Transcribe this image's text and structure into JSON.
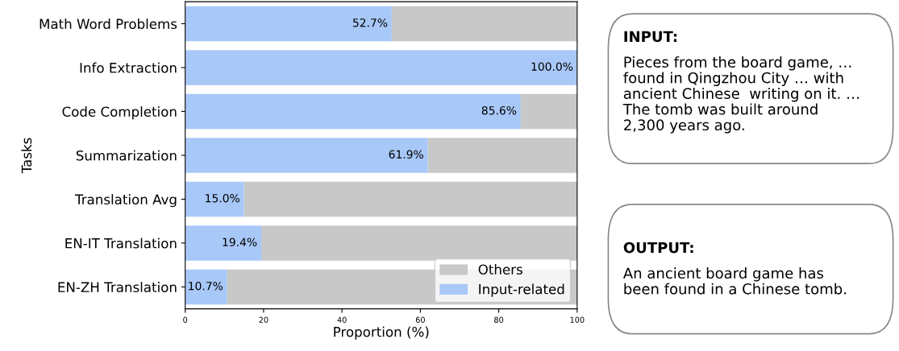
{
  "chart_data": [
    {
      "type": "bar",
      "orientation": "horizontal",
      "stacked": true,
      "xlabel": "Proportion (%)",
      "ylabel": "Tasks",
      "categories": [
        "Math Word Problems",
        "Info Extraction",
        "Code Completion",
        "Summarization",
        "Translation Avg",
        "EN-IT Translation",
        "EN-ZH Translation"
      ],
      "series": [
        {
          "name": "Input-related",
          "color": "#a8c8f8",
          "values": [
            52.7,
            100.0,
            85.6,
            61.9,
            15.0,
            19.4,
            10.7
          ],
          "value_labels": [
            "52.7%",
            "100.0%",
            "85.6%",
            "61.9%",
            "15.0%",
            "19.4%",
            "10.7%"
          ]
        },
        {
          "name": "Others",
          "color": "#c8c8c8",
          "values": [
            47.3,
            0.0,
            14.4,
            38.1,
            85.0,
            80.6,
            89.3
          ]
        }
      ],
      "xlim": [
        0,
        100
      ],
      "xticks": [
        0,
        20,
        40,
        60,
        80,
        100
      ],
      "grid": false,
      "legend": "bottom right"
    },
    {
      "type": "other",
      "annotations": [
        "INPUT:",
        "Pieces from the board game, …\nfound in Qingzhou City … with\nancient Chinese  writing on it. …\nThe tomb was built around\n2,300 years ago.",
        "OUTPUT:",
        "An ancient board game has\nbeen found in a Chinese tomb."
      ]
    }
  ]
}
